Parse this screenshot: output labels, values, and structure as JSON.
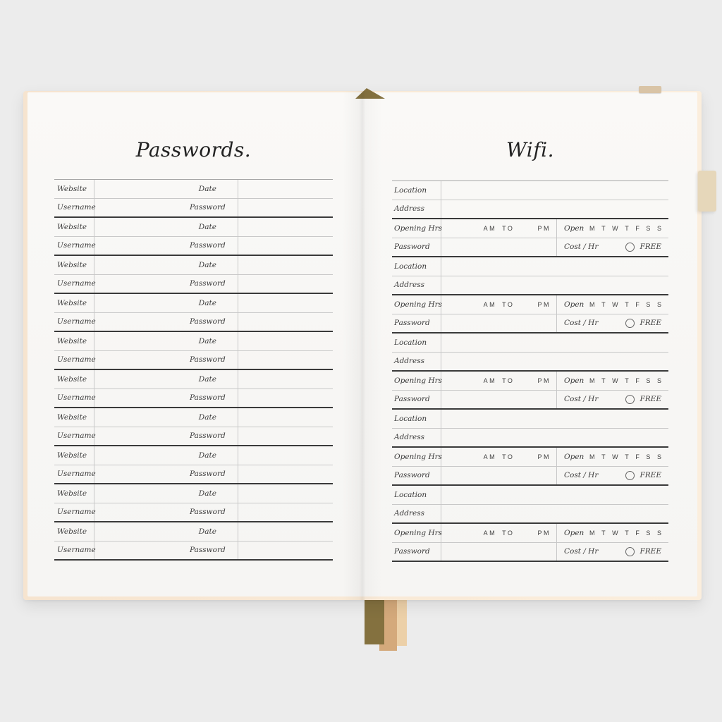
{
  "left_page": {
    "title": "Passwords.",
    "entries_count": 10,
    "entry_labels": {
      "website": "Website",
      "date": "Date",
      "username": "Username",
      "password": "Password"
    }
  },
  "right_page": {
    "title": "Wifi.",
    "entries_count": 5,
    "entry_labels": {
      "location": "Location",
      "address": "Address",
      "opening_hrs": "Opening Hrs",
      "am": "AM",
      "to": "TO",
      "pm": "PM",
      "open": "Open",
      "days": [
        "M",
        "T",
        "W",
        "T",
        "F",
        "S",
        "S"
      ],
      "password": "Password",
      "cost_hr": "Cost / Hr",
      "free": "FREE"
    }
  },
  "colors": {
    "background": "#ececec",
    "edge_cream": "#f6e4cf",
    "edge_cream_light": "#fbeedd",
    "ribbon_olive": "#84713f",
    "ribbon_tan": "#d4a97b",
    "ribbon_peach": "#ecd0a8",
    "elastic_beige": "#e6d7ba",
    "elastic_tan": "#d9c4a6",
    "line_dark": "#3a3a3a",
    "line_light": "#c8c8c8",
    "line_mid": "#a6a6a6",
    "text": "#3a3a3a"
  }
}
